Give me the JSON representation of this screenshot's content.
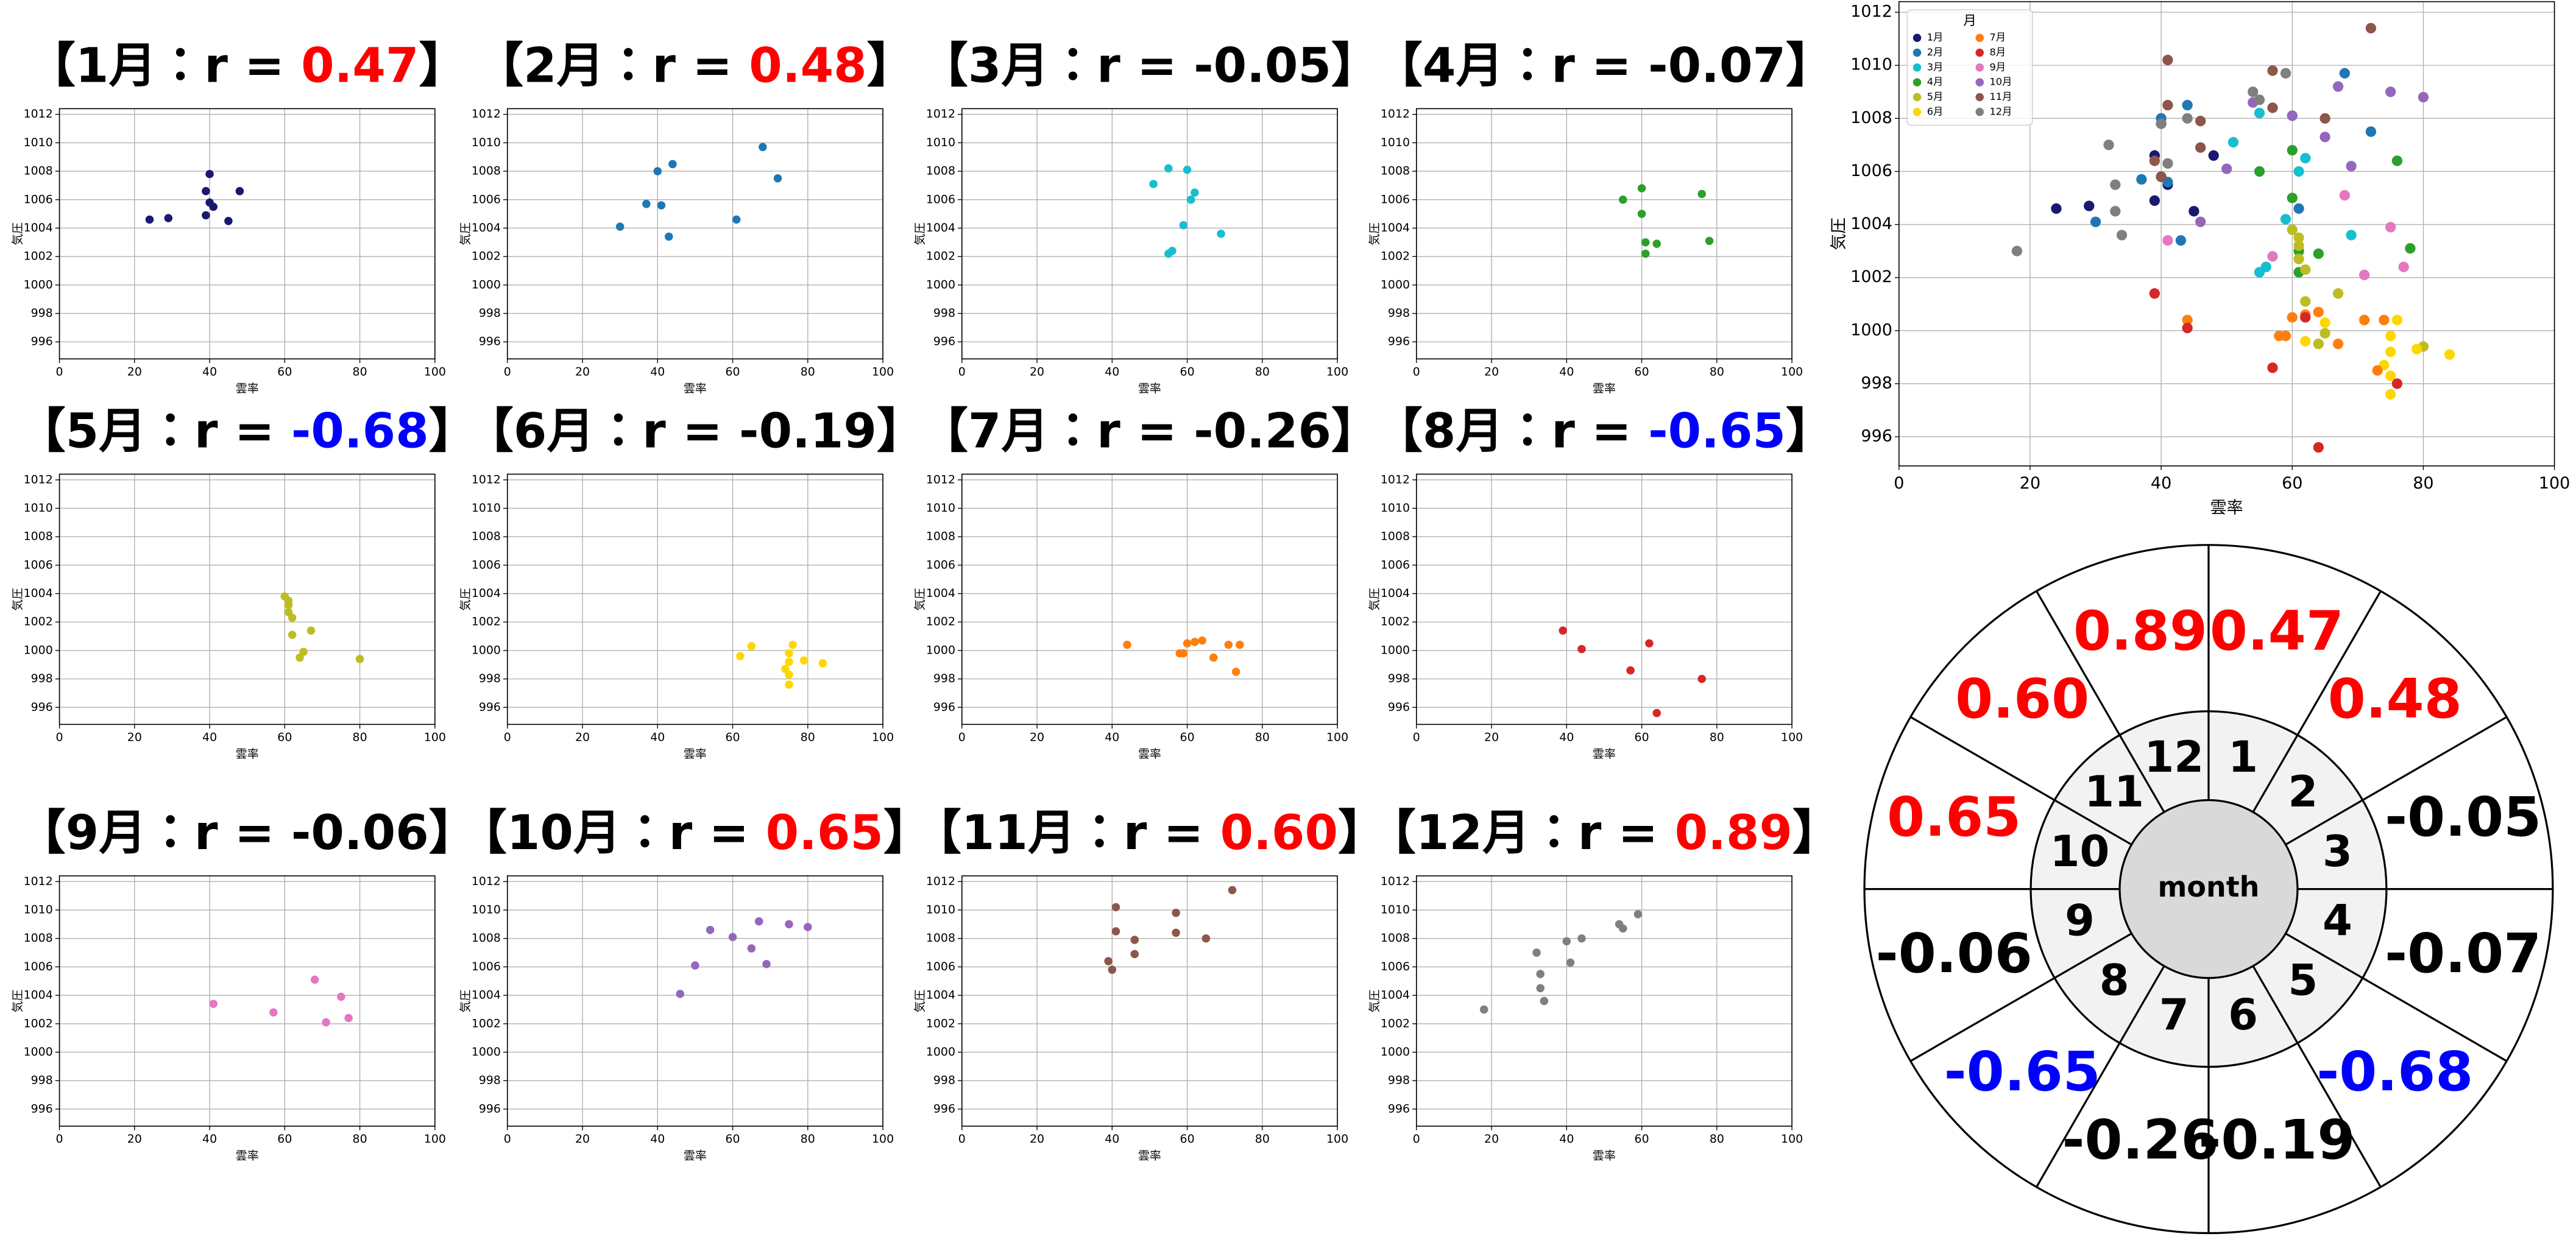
{
  "chart_data": [
    {
      "type": "scatter",
      "title": [
        {
          "text": "【1月：r = "
        },
        {
          "text": "0.47",
          "color": "#ff0000"
        },
        {
          "text": "】"
        }
      ],
      "xlabel": "雲率",
      "ylabel": "気圧",
      "color": "#191970",
      "x": [
        24,
        29,
        39,
        39,
        40,
        40,
        41,
        45,
        48
      ],
      "y": [
        1004.6,
        1004.7,
        1004.9,
        1006.6,
        1007.8,
        1005.8,
        1005.5,
        1004.5,
        1006.6
      ],
      "xlim": [
        0,
        100
      ],
      "ylim": [
        994.8,
        1012.4
      ],
      "xticks": [
        0,
        20,
        40,
        60,
        80,
        100
      ],
      "yticks": [
        996,
        998,
        1000,
        1002,
        1004,
        1006,
        1008,
        1010,
        1012
      ],
      "grid": true
    },
    {
      "type": "scatter",
      "title": [
        {
          "text": "【2月：r = "
        },
        {
          "text": "0.48",
          "color": "#ff0000"
        },
        {
          "text": "】"
        }
      ],
      "xlabel": "雲率",
      "ylabel": "気圧",
      "color": "#1f77b4",
      "x": [
        30,
        37,
        40,
        41,
        43,
        44,
        61,
        68,
        72
      ],
      "y": [
        1004.1,
        1005.7,
        1008.0,
        1005.6,
        1003.4,
        1008.5,
        1004.6,
        1009.7,
        1007.5
      ],
      "xlim": [
        0,
        100
      ],
      "ylim": [
        994.8,
        1012.4
      ],
      "xticks": [
        0,
        20,
        40,
        60,
        80,
        100
      ],
      "yticks": [
        996,
        998,
        1000,
        1002,
        1004,
        1006,
        1008,
        1010,
        1012
      ],
      "grid": true
    },
    {
      "type": "scatter",
      "title": [
        {
          "text": "【3月：r = "
        },
        {
          "text": "-0.05",
          "color": "#000000"
        },
        {
          "text": "】"
        }
      ],
      "xlabel": "雲率",
      "ylabel": "気圧",
      "color": "#17becf",
      "x": [
        51,
        55,
        55,
        56,
        59,
        60,
        61,
        62,
        69
      ],
      "y": [
        1007.1,
        1008.2,
        1002.2,
        1002.4,
        1004.2,
        1008.1,
        1006.0,
        1006.5,
        1003.6
      ],
      "xlim": [
        0,
        100
      ],
      "ylim": [
        994.8,
        1012.4
      ],
      "xticks": [
        0,
        20,
        40,
        60,
        80,
        100
      ],
      "yticks": [
        996,
        998,
        1000,
        1002,
        1004,
        1006,
        1008,
        1010,
        1012
      ],
      "grid": true
    },
    {
      "type": "scatter",
      "title": [
        {
          "text": "【4月：r = "
        },
        {
          "text": "-0.07",
          "color": "#000000"
        },
        {
          "text": "】"
        }
      ],
      "xlabel": "雲率",
      "ylabel": "気圧",
      "color": "#2ca02c",
      "x": [
        55,
        60,
        60,
        61,
        61,
        64,
        76,
        78
      ],
      "y": [
        1006.0,
        1006.8,
        1005.0,
        1003.0,
        1002.2,
        1002.9,
        1006.4,
        1003.1
      ],
      "xlim": [
        0,
        100
      ],
      "ylim": [
        994.8,
        1012.4
      ],
      "xticks": [
        0,
        20,
        40,
        60,
        80,
        100
      ],
      "yticks": [
        996,
        998,
        1000,
        1002,
        1004,
        1006,
        1008,
        1010,
        1012
      ],
      "grid": true
    },
    {
      "type": "scatter",
      "title": [
        {
          "text": "【5月：r = "
        },
        {
          "text": "-0.68",
          "color": "#0000ff"
        },
        {
          "text": "】"
        }
      ],
      "xlabel": "雲率",
      "ylabel": "気圧",
      "color": "#bcbd22",
      "x": [
        60,
        61,
        61,
        61,
        62,
        62,
        67,
        65,
        64,
        80
      ],
      "y": [
        1003.8,
        1003.5,
        1003.2,
        1002.7,
        1002.3,
        1001.1,
        1001.4,
        999.9,
        999.5,
        999.4
      ],
      "xlim": [
        0,
        100
      ],
      "ylim": [
        994.8,
        1012.4
      ],
      "xticks": [
        0,
        20,
        40,
        60,
        80,
        100
      ],
      "yticks": [
        996,
        998,
        1000,
        1002,
        1004,
        1006,
        1008,
        1010,
        1012
      ],
      "grid": true
    },
    {
      "type": "scatter",
      "title": [
        {
          "text": "【6月：r = "
        },
        {
          "text": "-0.19",
          "color": "#000000"
        },
        {
          "text": "】"
        }
      ],
      "xlabel": "雲率",
      "ylabel": "気圧",
      "color": "#ffd700",
      "x": [
        62,
        65,
        75,
        75,
        74,
        75,
        75,
        76,
        79,
        84
      ],
      "y": [
        999.6,
        1000.3,
        999.8,
        999.2,
        998.7,
        998.3,
        997.6,
        1000.4,
        999.3,
        999.1
      ],
      "xlim": [
        0,
        100
      ],
      "ylim": [
        994.8,
        1012.4
      ],
      "xticks": [
        0,
        20,
        40,
        60,
        80,
        100
      ],
      "yticks": [
        996,
        998,
        1000,
        1002,
        1004,
        1006,
        1008,
        1010,
        1012
      ],
      "grid": true
    },
    {
      "type": "scatter",
      "title": [
        {
          "text": "【7月：r = "
        },
        {
          "text": "-0.26",
          "color": "#000000"
        },
        {
          "text": "】"
        }
      ],
      "xlabel": "雲率",
      "ylabel": "気圧",
      "color": "#ff7f0e",
      "x": [
        44,
        58,
        59,
        60,
        62,
        64,
        67,
        71,
        74,
        73
      ],
      "y": [
        1000.4,
        999.8,
        999.8,
        1000.5,
        1000.6,
        1000.7,
        999.5,
        1000.4,
        1000.4,
        998.5
      ],
      "xlim": [
        0,
        100
      ],
      "ylim": [
        994.8,
        1012.4
      ],
      "xticks": [
        0,
        20,
        40,
        60,
        80,
        100
      ],
      "yticks": [
        996,
        998,
        1000,
        1002,
        1004,
        1006,
        1008,
        1010,
        1012
      ],
      "grid": true
    },
    {
      "type": "scatter",
      "title": [
        {
          "text": "【8月：r = "
        },
        {
          "text": "-0.65",
          "color": "#0000ff"
        },
        {
          "text": "】"
        }
      ],
      "xlabel": "雲率",
      "ylabel": "気圧",
      "color": "#d62728",
      "x": [
        39,
        44,
        62,
        57,
        64,
        76
      ],
      "y": [
        1001.4,
        1000.1,
        1000.5,
        998.6,
        995.6,
        998.0
      ],
      "xlim": [
        0,
        100
      ],
      "ylim": [
        994.8,
        1012.4
      ],
      "xticks": [
        0,
        20,
        40,
        60,
        80,
        100
      ],
      "yticks": [
        996,
        998,
        1000,
        1002,
        1004,
        1006,
        1008,
        1010,
        1012
      ],
      "grid": true
    },
    {
      "type": "scatter",
      "title": [
        {
          "text": "【9月：r = "
        },
        {
          "text": "-0.06",
          "color": "#000000"
        },
        {
          "text": "】"
        }
      ],
      "xlabel": "雲率",
      "ylabel": "気圧",
      "color": "#e377c2",
      "x": [
        41,
        57,
        68,
        71,
        75,
        77
      ],
      "y": [
        1003.4,
        1002.8,
        1005.1,
        1002.1,
        1003.9,
        1002.4
      ],
      "xlim": [
        0,
        100
      ],
      "ylim": [
        994.8,
        1012.4
      ],
      "xticks": [
        0,
        20,
        40,
        60,
        80,
        100
      ],
      "yticks": [
        996,
        998,
        1000,
        1002,
        1004,
        1006,
        1008,
        1010,
        1012
      ],
      "grid": true
    },
    {
      "type": "scatter",
      "title": [
        {
          "text": "【10月：r = "
        },
        {
          "text": "0.65",
          "color": "#ff0000"
        },
        {
          "text": "】"
        }
      ],
      "xlabel": "雲率",
      "ylabel": "気圧",
      "color": "#9467bd",
      "x": [
        46,
        50,
        54,
        60,
        65,
        67,
        69,
        75,
        80
      ],
      "y": [
        1004.1,
        1006.1,
        1008.6,
        1008.1,
        1007.3,
        1009.2,
        1006.2,
        1009.0,
        1008.8
      ],
      "xlim": [
        0,
        100
      ],
      "ylim": [
        994.8,
        1012.4
      ],
      "xticks": [
        0,
        20,
        40,
        60,
        80,
        100
      ],
      "yticks": [
        996,
        998,
        1000,
        1002,
        1004,
        1006,
        1008,
        1010,
        1012
      ],
      "grid": true
    },
    {
      "type": "scatter",
      "title": [
        {
          "text": "【11月：r = "
        },
        {
          "text": "0.60",
          "color": "#ff0000"
        },
        {
          "text": "】"
        }
      ],
      "xlabel": "雲率",
      "ylabel": "気圧",
      "color": "#8c564b",
      "x": [
        39,
        40,
        41,
        41,
        46,
        46,
        57,
        57,
        65,
        72
      ],
      "y": [
        1006.4,
        1005.8,
        1010.2,
        1008.5,
        1007.9,
        1006.9,
        1009.8,
        1008.4,
        1008.0,
        1011.4
      ],
      "xlim": [
        0,
        100
      ],
      "ylim": [
        994.8,
        1012.4
      ],
      "xticks": [
        0,
        20,
        40,
        60,
        80,
        100
      ],
      "yticks": [
        996,
        998,
        1000,
        1002,
        1004,
        1006,
        1008,
        1010,
        1012
      ],
      "grid": true
    },
    {
      "type": "scatter",
      "title": [
        {
          "text": "【12月：r = "
        },
        {
          "text": "0.89",
          "color": "#ff0000"
        },
        {
          "text": "】"
        }
      ],
      "xlabel": "雲率",
      "ylabel": "気圧",
      "color": "#7f7f7f",
      "x": [
        18,
        32,
        33,
        33,
        34,
        40,
        41,
        44,
        54,
        55,
        59
      ],
      "y": [
        1003.0,
        1007.0,
        1005.5,
        1004.5,
        1003.6,
        1007.8,
        1006.3,
        1008.0,
        1009.0,
        1008.7,
        1009.7
      ],
      "xlim": [
        0,
        100
      ],
      "ylim": [
        994.8,
        1012.4
      ],
      "xticks": [
        0,
        20,
        40,
        60,
        80,
        100
      ],
      "yticks": [
        996,
        998,
        1000,
        1002,
        1004,
        1006,
        1008,
        1010,
        1012
      ],
      "grid": true
    },
    {
      "type": "scatter",
      "xlabel": "雲率",
      "ylabel": "気圧",
      "legend_title": "月",
      "legend": "upper left",
      "series": [
        {
          "name": "1月"
        },
        {
          "name": "2月"
        },
        {
          "name": "3月"
        },
        {
          "name": "4月"
        },
        {
          "name": "5月"
        },
        {
          "name": "6月"
        },
        {
          "name": "7月"
        },
        {
          "name": "8月"
        },
        {
          "name": "9月"
        },
        {
          "name": "10月"
        },
        {
          "name": "11月"
        },
        {
          "name": "12月"
        }
      ],
      "xlim": [
        0,
        100
      ],
      "ylim": [
        994.9,
        1012.4
      ],
      "xticks": [
        0,
        20,
        40,
        60,
        80,
        100
      ],
      "yticks": [
        996,
        998,
        1000,
        1002,
        1004,
        1006,
        1008,
        1010,
        1012
      ],
      "grid": true
    }
  ],
  "wheel": {
    "center": "month",
    "months": [
      "1",
      "2",
      "3",
      "4",
      "5",
      "6",
      "7",
      "8",
      "9",
      "10",
      "11",
      "12"
    ]
  }
}
